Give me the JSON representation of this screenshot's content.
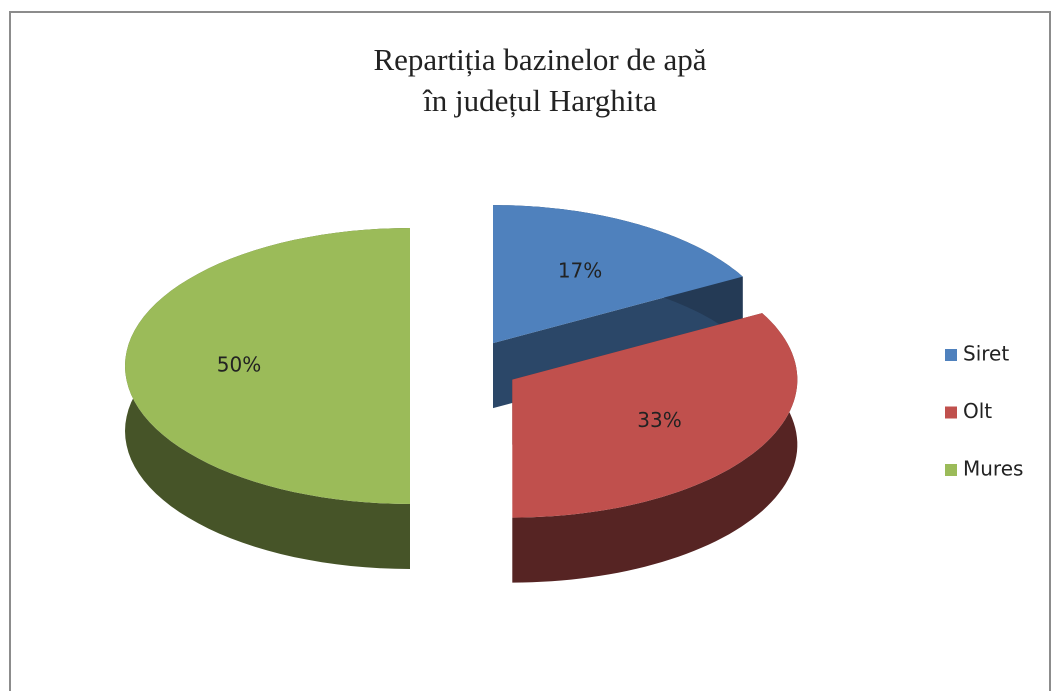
{
  "chart_data": {
    "type": "pie",
    "title": [
      "Repartiția bazinelor de apă",
      "în județul Harghita"
    ],
    "categories": [
      "Siret",
      "Olt",
      "Mures"
    ],
    "values": [
      17,
      33,
      50
    ],
    "value_labels": [
      "17%",
      "33%",
      "50%"
    ],
    "colors": [
      "#4f81bd",
      "#c0504d",
      "#9bbb59"
    ],
    "legend": "right"
  }
}
